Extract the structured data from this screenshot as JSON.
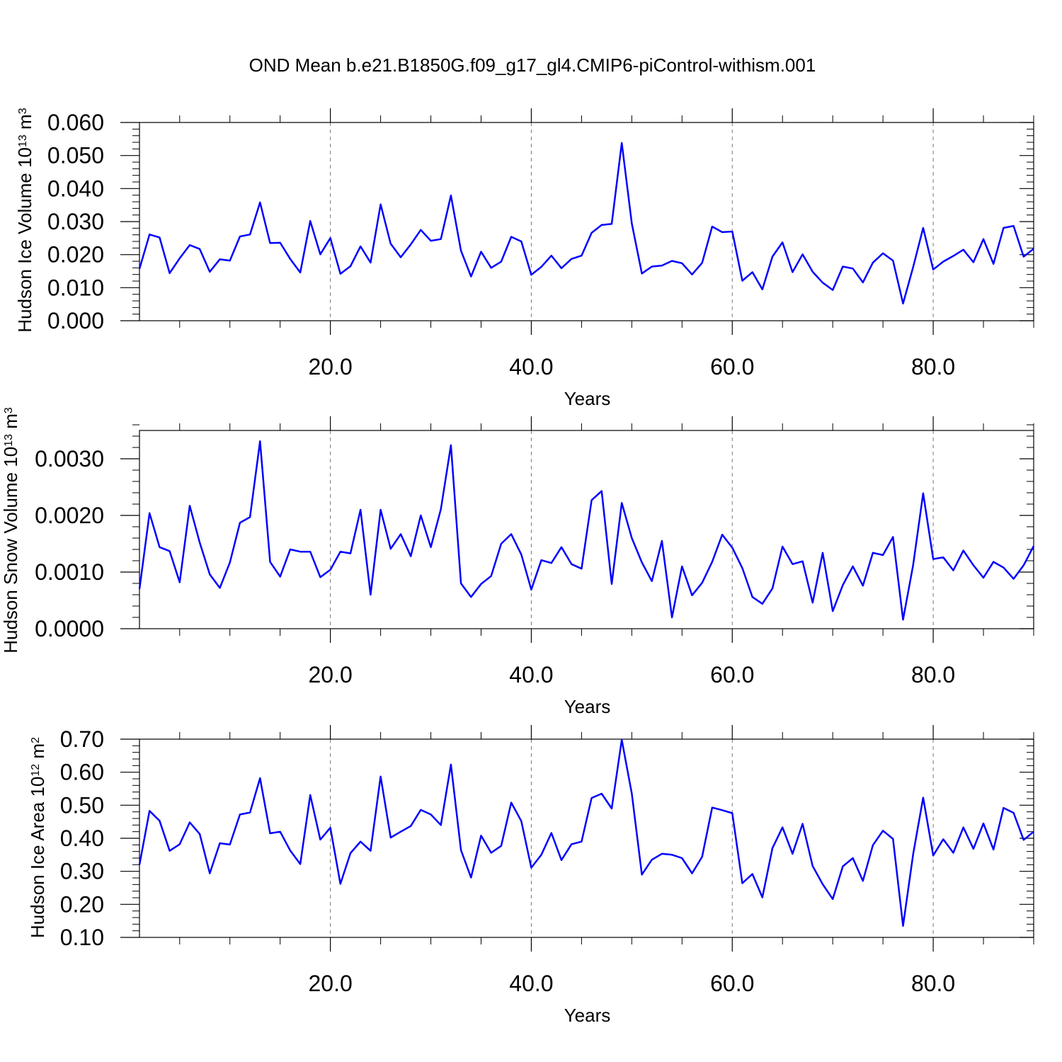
{
  "title": "OND Mean b.e21.B1850G.f09_g17_gl4.CMIP6-piControl-withism.001",
  "line_color": "#0000ff",
  "chart_data": [
    {
      "type": "line",
      "xlabel": "Years",
      "ylabel": {
        "main": "Hudson Ice Volume 10",
        "exp": "13",
        "unit": " m",
        "unit_exp": "3"
      },
      "xlim": [
        1,
        90
      ],
      "ylim": [
        0.0,
        0.06
      ],
      "xticks": [
        20,
        40,
        60,
        80
      ],
      "xtick_labels": [
        "20.0",
        "40.0",
        "60.0",
        "80.0"
      ],
      "yticks": [
        0.0,
        0.01,
        0.02,
        0.03,
        0.04,
        0.05,
        0.06
      ],
      "ytick_labels": [
        "0.000",
        "0.010",
        "0.020",
        "0.030",
        "0.040",
        "0.050",
        "0.060"
      ],
      "grid": "x-dashed",
      "series": [
        {
          "color": "#0000ff",
          "x": [
            1,
            2,
            3,
            4,
            5,
            6,
            7,
            8,
            9,
            10,
            11,
            12,
            13,
            14,
            15,
            16,
            17,
            18,
            19,
            20,
            21,
            22,
            23,
            24,
            25,
            26,
            27,
            28,
            29,
            30,
            31,
            32,
            33,
            34,
            35,
            36,
            37,
            38,
            39,
            40,
            41,
            42,
            43,
            44,
            45,
            46,
            47,
            48,
            49,
            50,
            51,
            52,
            53,
            54,
            55,
            56,
            57,
            58,
            59,
            60,
            61,
            62,
            63,
            64,
            65,
            66,
            67,
            68,
            69,
            70,
            71,
            72,
            73,
            74,
            75,
            76,
            77,
            78,
            79,
            80,
            81,
            82,
            83,
            84,
            85,
            86,
            87,
            88,
            89,
            90
          ],
          "values": [
            0.0157,
            0.0261,
            0.0252,
            0.0144,
            0.0189,
            0.0229,
            0.0217,
            0.0148,
            0.0186,
            0.0182,
            0.0255,
            0.0261,
            0.0358,
            0.0235,
            0.0236,
            0.0187,
            0.0146,
            0.0302,
            0.0201,
            0.025,
            0.0142,
            0.0165,
            0.0225,
            0.0176,
            0.0352,
            0.0233,
            0.0192,
            0.0231,
            0.0275,
            0.0242,
            0.0247,
            0.0379,
            0.0212,
            0.0134,
            0.0209,
            0.016,
            0.0179,
            0.0254,
            0.024,
            0.0139,
            0.0163,
            0.0197,
            0.0159,
            0.0187,
            0.0197,
            0.0266,
            0.029,
            0.0293,
            0.0538,
            0.0294,
            0.0143,
            0.0164,
            0.0167,
            0.0181,
            0.0174,
            0.014,
            0.0175,
            0.0285,
            0.0268,
            0.027,
            0.0121,
            0.0147,
            0.0095,
            0.0194,
            0.0237,
            0.0147,
            0.0201,
            0.0148,
            0.0115,
            0.0093,
            0.0164,
            0.0158,
            0.0116,
            0.0176,
            0.0204,
            0.0182,
            0.0052,
            0.0162,
            0.0281,
            0.0155,
            0.0179,
            0.0196,
            0.0215,
            0.0177,
            0.0247,
            0.0172,
            0.0281,
            0.0287,
            0.0194,
            0.0218
          ]
        }
      ]
    },
    {
      "type": "line",
      "xlabel": "Years",
      "ylabel": {
        "main": "Hudson Snow Volume 10",
        "exp": "13",
        "unit": " m",
        "unit_exp": "3"
      },
      "xlim": [
        1,
        90
      ],
      "ylim": [
        0.0,
        0.0035
      ],
      "xticks": [
        20,
        40,
        60,
        80
      ],
      "xtick_labels": [
        "20.0",
        "40.0",
        "60.0",
        "80.0"
      ],
      "yticks": [
        0.0,
        0.001,
        0.002,
        0.003
      ],
      "ytick_labels": [
        "0.0000",
        "0.0010",
        "0.0020",
        "0.0030"
      ],
      "grid": "x-dashed",
      "series": [
        {
          "color": "#0000ff",
          "x": [
            1,
            2,
            3,
            4,
            5,
            6,
            7,
            8,
            9,
            10,
            11,
            12,
            13,
            14,
            15,
            16,
            17,
            18,
            19,
            20,
            21,
            22,
            23,
            24,
            25,
            26,
            27,
            28,
            29,
            30,
            31,
            32,
            33,
            34,
            35,
            36,
            37,
            38,
            39,
            40,
            41,
            42,
            43,
            44,
            45,
            46,
            47,
            48,
            49,
            50,
            51,
            52,
            53,
            54,
            55,
            56,
            57,
            58,
            59,
            60,
            61,
            62,
            63,
            64,
            65,
            66,
            67,
            68,
            69,
            70,
            71,
            72,
            73,
            74,
            75,
            76,
            77,
            78,
            79,
            80,
            81,
            82,
            83,
            84,
            85,
            86,
            87,
            88,
            89,
            90
          ],
          "values": [
            0.0007,
            0.00204,
            0.00144,
            0.00137,
            0.00082,
            0.00217,
            0.00152,
            0.00096,
            0.00072,
            0.00117,
            0.00187,
            0.00197,
            0.00331,
            0.00118,
            0.00092,
            0.0014,
            0.00136,
            0.00136,
            0.00091,
            0.00104,
            0.00136,
            0.00133,
            0.0021,
            0.0006,
            0.0021,
            0.00141,
            0.00167,
            0.00128,
            0.002,
            0.00144,
            0.00211,
            0.00324,
            0.0008,
            0.00056,
            0.00079,
            0.00093,
            0.0015,
            0.00167,
            0.00131,
            0.00069,
            0.00121,
            0.00116,
            0.00144,
            0.00114,
            0.00106,
            0.00227,
            0.00243,
            0.00079,
            0.00222,
            0.0016,
            0.00117,
            0.00084,
            0.00155,
            0.0002,
            0.0011,
            0.00059,
            0.00081,
            0.00118,
            0.00166,
            0.00143,
            0.00107,
            0.00056,
            0.00044,
            0.00071,
            0.00145,
            0.00114,
            0.00119,
            0.00046,
            0.00134,
            0.00031,
            0.00077,
            0.0011,
            0.00076,
            0.00134,
            0.0013,
            0.00162,
            0.00016,
            0.00112,
            0.00239,
            0.00123,
            0.00126,
            0.00103,
            0.00138,
            0.00112,
            0.0009,
            0.00118,
            0.00108,
            0.00088,
            0.00112,
            0.00146
          ]
        }
      ]
    },
    {
      "type": "line",
      "xlabel": "Years",
      "ylabel": {
        "main": "Hudson Ice Area 10",
        "exp": "12",
        "unit": " m",
        "unit_exp": "2"
      },
      "xlim": [
        1,
        90
      ],
      "ylim": [
        0.1,
        0.7
      ],
      "xticks": [
        20,
        40,
        60,
        80
      ],
      "xtick_labels": [
        "20.0",
        "40.0",
        "60.0",
        "80.0"
      ],
      "yticks": [
        0.1,
        0.2,
        0.3,
        0.4,
        0.5,
        0.6,
        0.7
      ],
      "ytick_labels": [
        "0.10",
        "0.20",
        "0.30",
        "0.40",
        "0.50",
        "0.60",
        "0.70"
      ],
      "grid": "x-dashed",
      "series": [
        {
          "color": "#0000ff",
          "x": [
            1,
            2,
            3,
            4,
            5,
            6,
            7,
            8,
            9,
            10,
            11,
            12,
            13,
            14,
            15,
            16,
            17,
            18,
            19,
            20,
            21,
            22,
            23,
            24,
            25,
            26,
            27,
            28,
            29,
            30,
            31,
            32,
            33,
            34,
            35,
            36,
            37,
            38,
            39,
            40,
            41,
            42,
            43,
            44,
            45,
            46,
            47,
            48,
            49,
            50,
            51,
            52,
            53,
            54,
            55,
            56,
            57,
            58,
            59,
            60,
            61,
            62,
            63,
            64,
            65,
            66,
            67,
            68,
            69,
            70,
            71,
            72,
            73,
            74,
            75,
            76,
            77,
            78,
            79,
            80,
            81,
            82,
            83,
            84,
            85,
            86,
            87,
            88,
            89,
            90
          ],
          "values": [
            0.32,
            0.483,
            0.453,
            0.362,
            0.382,
            0.448,
            0.413,
            0.294,
            0.385,
            0.381,
            0.472,
            0.478,
            0.582,
            0.415,
            0.42,
            0.363,
            0.322,
            0.531,
            0.396,
            0.432,
            0.262,
            0.355,
            0.39,
            0.362,
            0.587,
            0.402,
            0.42,
            0.437,
            0.486,
            0.472,
            0.44,
            0.623,
            0.364,
            0.281,
            0.408,
            0.356,
            0.377,
            0.508,
            0.452,
            0.311,
            0.35,
            0.416,
            0.334,
            0.382,
            0.39,
            0.522,
            0.535,
            0.49,
            0.698,
            0.535,
            0.29,
            0.335,
            0.353,
            0.35,
            0.34,
            0.294,
            0.344,
            0.493,
            0.485,
            0.476,
            0.264,
            0.292,
            0.221,
            0.37,
            0.433,
            0.353,
            0.444,
            0.316,
            0.261,
            0.216,
            0.315,
            0.34,
            0.271,
            0.379,
            0.423,
            0.398,
            0.135,
            0.351,
            0.523,
            0.348,
            0.397,
            0.356,
            0.433,
            0.368,
            0.445,
            0.366,
            0.492,
            0.477,
            0.395,
            0.42
          ]
        }
      ]
    }
  ]
}
